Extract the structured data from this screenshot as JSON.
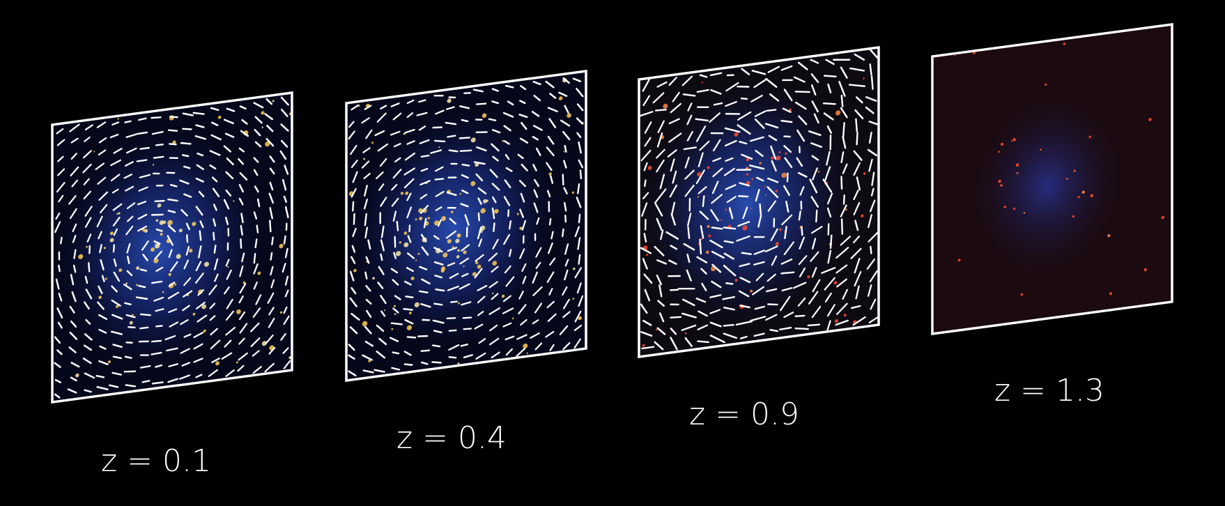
{
  "panels": [
    {
      "label": "z = 0.1"
    },
    {
      "label": "z = 0.4"
    },
    {
      "label": "z = 0.9"
    },
    {
      "label": "z = 1.3"
    }
  ]
}
